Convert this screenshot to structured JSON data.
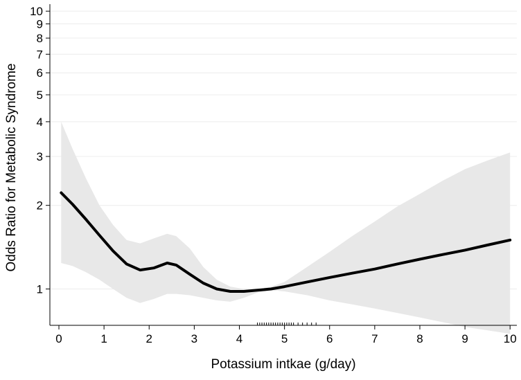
{
  "chart_data": {
    "type": "line",
    "title": "",
    "xlabel": "Potassium intkae (g/day)",
    "ylabel": "Odds Ratio for Metabolic Syndrome",
    "xlim": [
      -0.2,
      10.15
    ],
    "ylim": [
      0.74,
      10.6
    ],
    "y_scale": "log",
    "x_ticks": [
      0,
      1,
      2,
      3,
      4,
      5,
      6,
      7,
      8,
      9,
      10
    ],
    "y_ticks": [
      1,
      2,
      3,
      4,
      5,
      6,
      7,
      8,
      9,
      10
    ],
    "grid": "horizontal",
    "legend": "none",
    "colors": {
      "line": "#000000",
      "band": "#e8e8e8",
      "grid": "#ececec",
      "axis": "#000000"
    },
    "series": [
      {
        "x": [
          0.05,
          0.3,
          0.6,
          0.9,
          1.2,
          1.5,
          1.8,
          2.1,
          2.4,
          2.6,
          2.9,
          3.2,
          3.5,
          3.8,
          4.1,
          4.4,
          4.7,
          5.0,
          5.5,
          6.0,
          6.5,
          7.0,
          7.5,
          8.0,
          8.5,
          9.0,
          9.5,
          10.0
        ],
        "y": [
          2.22,
          2.02,
          1.78,
          1.56,
          1.37,
          1.23,
          1.17,
          1.19,
          1.24,
          1.22,
          1.13,
          1.05,
          1.0,
          0.98,
          0.98,
          0.99,
          1.0,
          1.02,
          1.06,
          1.1,
          1.14,
          1.18,
          1.23,
          1.28,
          1.33,
          1.38,
          1.44,
          1.5
        ]
      }
    ],
    "confidence_band": {
      "x": [
        0.05,
        0.3,
        0.6,
        0.9,
        1.2,
        1.5,
        1.8,
        2.1,
        2.4,
        2.6,
        2.9,
        3.2,
        3.5,
        3.8,
        4.1,
        4.4,
        4.7,
        5.0,
        5.5,
        6.0,
        6.5,
        7.0,
        7.5,
        8.0,
        8.5,
        9.0,
        9.5,
        10.0
      ],
      "lower": [
        1.24,
        1.21,
        1.15,
        1.08,
        1.0,
        0.93,
        0.89,
        0.92,
        0.96,
        0.96,
        0.95,
        0.93,
        0.91,
        0.9,
        0.93,
        0.97,
        0.99,
        0.98,
        0.95,
        0.91,
        0.88,
        0.85,
        0.82,
        0.79,
        0.76,
        0.73,
        0.71,
        0.69
      ],
      "upper": [
        4.0,
        3.2,
        2.5,
        2.0,
        1.7,
        1.5,
        1.46,
        1.52,
        1.58,
        1.55,
        1.4,
        1.2,
        1.08,
        1.02,
        1.0,
        1.0,
        1.02,
        1.06,
        1.2,
        1.36,
        1.55,
        1.75,
        1.98,
        2.2,
        2.45,
        2.7,
        2.9,
        3.1
      ]
    },
    "rug_x": [
      4.4,
      4.45,
      4.5,
      4.55,
      4.6,
      4.65,
      4.7,
      4.75,
      4.8,
      4.85,
      4.9,
      4.95,
      5.0,
      5.05,
      5.1,
      5.15,
      5.2,
      5.3,
      5.4,
      5.5,
      5.6,
      5.7
    ]
  }
}
